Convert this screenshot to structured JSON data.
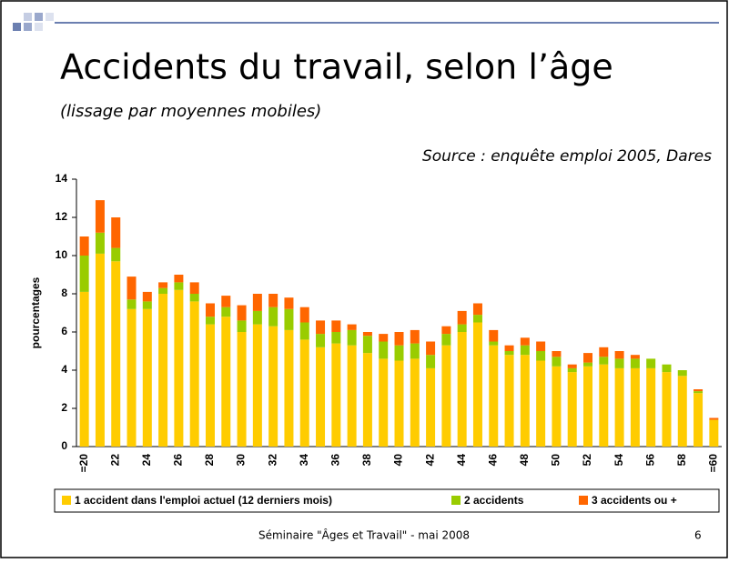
{
  "chart_data": {
    "type": "stacked_bar",
    "title": "Accidents du travail, selon l’âge",
    "subtitle": "(lissage par moyennes mobiles)",
    "source": "Source : enquête emploi 2005, Dares",
    "y_label": "pourcentages",
    "categories": [
      "=20",
      null,
      "22",
      null,
      "24",
      null,
      "26",
      null,
      "28",
      null,
      "30",
      null,
      "32",
      null,
      "34",
      null,
      "36",
      null,
      "38",
      null,
      "40",
      null,
      "42",
      null,
      "44",
      null,
      "46",
      null,
      "48",
      null,
      "50",
      null,
      "52",
      null,
      "54",
      null,
      "56",
      null,
      "58",
      null,
      "=60"
    ],
    "series": [
      {
        "name": "1 accident dans l'emploi actuel (12 derniers mois)",
        "color": "#ffcc00",
        "values": [
          8.1,
          10.1,
          9.7,
          7.2,
          7.2,
          8.0,
          8.2,
          7.6,
          6.4,
          6.8,
          6.0,
          6.4,
          6.3,
          6.1,
          5.6,
          5.2,
          5.4,
          5.3,
          4.9,
          4.6,
          4.5,
          4.6,
          4.1,
          5.3,
          6.0,
          6.5,
          5.3,
          4.8,
          4.8,
          4.5,
          4.2,
          3.9,
          4.2,
          4.3,
          4.1,
          4.1,
          4.1,
          3.9,
          3.7,
          2.8,
          1.4
        ]
      },
      {
        "name": "2 accidents",
        "color": "#99cc00",
        "values": [
          1.9,
          1.1,
          0.7,
          0.5,
          0.4,
          0.3,
          0.4,
          0.4,
          0.4,
          0.5,
          0.6,
          0.7,
          1.0,
          1.1,
          0.9,
          0.7,
          0.6,
          0.8,
          0.9,
          0.9,
          0.8,
          0.8,
          0.7,
          0.6,
          0.4,
          0.4,
          0.2,
          0.2,
          0.5,
          0.5,
          0.5,
          0.2,
          0.2,
          0.4,
          0.5,
          0.5,
          0.5,
          0.4,
          0.3,
          0.1,
          0
        ]
      },
      {
        "name": "3 accidents ou +",
        "color": "#ff6600",
        "values": [
          1.0,
          1.7,
          1.6,
          1.2,
          0.5,
          0.3,
          0.4,
          0.6,
          0.7,
          0.6,
          0.8,
          0.9,
          0.7,
          0.6,
          0.8,
          0.7,
          0.6,
          0.3,
          0.2,
          0.4,
          0.7,
          0.7,
          0.7,
          0.4,
          0.7,
          0.6,
          0.6,
          0.3,
          0.4,
          0.5,
          0.3,
          0.2,
          0.5,
          0.5,
          0.4,
          0.2,
          0,
          0,
          0,
          0.1,
          0.1
        ]
      }
    ],
    "ylim": [
      0,
      14
    ],
    "yticks": [
      0,
      2,
      4,
      6,
      8,
      10,
      12,
      14
    ]
  },
  "footer": {
    "text": "Séminaire \"Âges et Travail\" - mai 2008",
    "page": "6"
  }
}
